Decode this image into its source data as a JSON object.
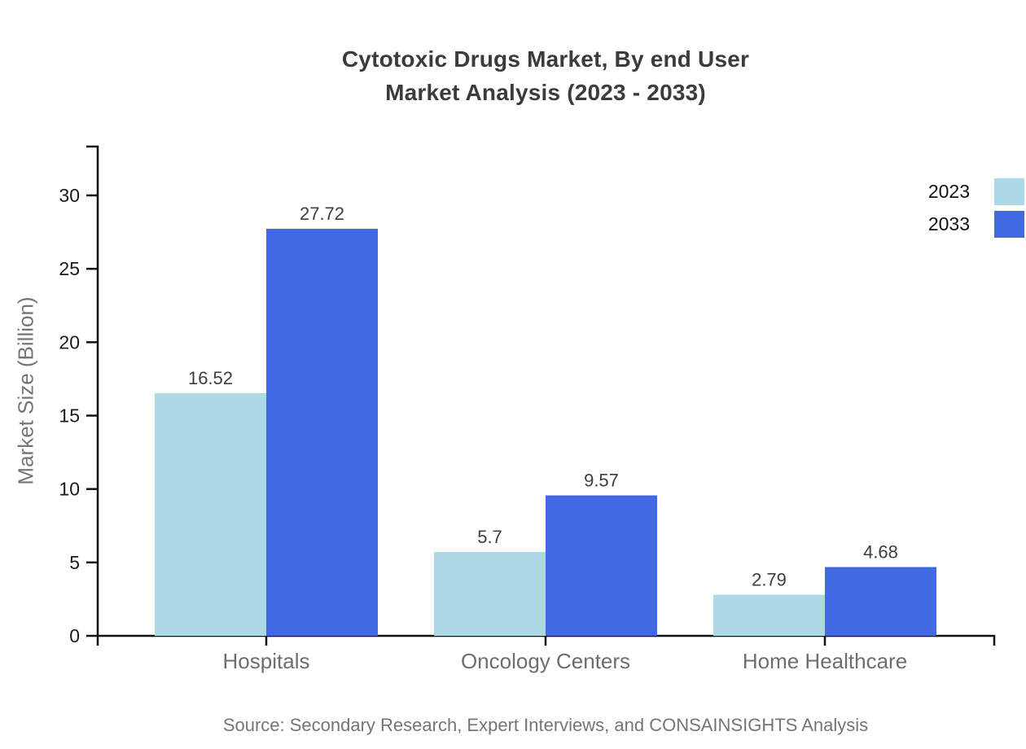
{
  "title": {
    "line1": "Cytotoxic Drugs Market, By end User",
    "line2": "Market Analysis (2023 - 2033)"
  },
  "y_axis": {
    "label": "Market Size (Billion)"
  },
  "legend": {
    "items": [
      {
        "label": "2023",
        "color": "#add8e6"
      },
      {
        "label": "2033",
        "color": "#4169e1"
      }
    ]
  },
  "source": "Source: Secondary Research, Expert Interviews, and CONSAINSIGHTS Analysis",
  "chart_data": {
    "type": "bar",
    "title": "Cytotoxic Drugs Market, By end User Market Analysis (2023 - 2033)",
    "categories": [
      "Hospitals",
      "Oncology Centers",
      "Home Healthcare"
    ],
    "series": [
      {
        "name": "2023",
        "color": "#add8e6",
        "values": [
          16.52,
          5.7,
          2.79
        ]
      },
      {
        "name": "2033",
        "color": "#4169e1",
        "values": [
          27.72,
          9.57,
          4.68
        ]
      }
    ],
    "xlabel": "",
    "ylabel": "Market Size (Billion)",
    "yticks": [
      0,
      5,
      10,
      15,
      20,
      25,
      30
    ],
    "ylim": [
      0,
      33.3
    ],
    "grid": false,
    "value_labels": true,
    "legend_position": "top-right",
    "axis_color": "#111111",
    "tick_label_color": "#1a1a1a",
    "category_label_color": "#6e6e6e",
    "value_label_color": "#3d3d3d"
  }
}
